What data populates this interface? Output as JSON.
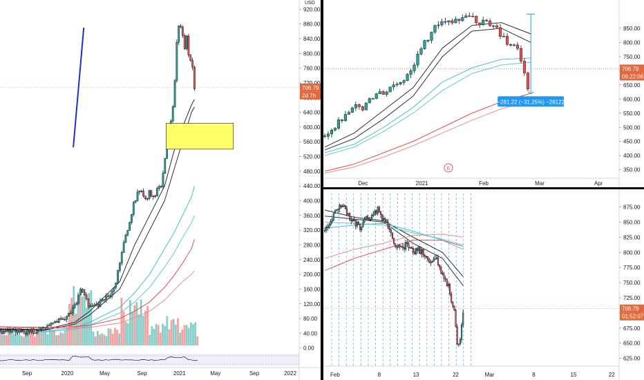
{
  "chart_data": [
    {
      "type": "candlestick",
      "pane": "left-weekly",
      "currency": "USD",
      "price_axis": {
        "ticks": [
          920,
          880,
          840,
          800,
          760,
          720,
          680,
          640,
          600,
          560,
          520,
          480,
          440,
          400,
          360,
          320,
          280,
          240,
          200,
          160,
          120,
          80,
          40,
          0
        ],
        "tick_labels": [
          "920.00",
          "880.00",
          "840.00",
          "800.00",
          "760.00",
          "720.00",
          "680.00",
          "640.00",
          "600.00",
          "560.00",
          "520.00",
          "480.00",
          "440.00",
          "400.00",
          "360.00",
          "320.00",
          "280.00",
          "240.00",
          "200.00",
          "160.00",
          "120.00",
          "80.00",
          "40.00",
          "0.00"
        ],
        "range": [
          -8,
          930
        ]
      },
      "time_axis": {
        "labels": [
          "Sep",
          "2020",
          "May",
          "Sep",
          "2021",
          "May",
          "Sep",
          "2022"
        ],
        "positions": [
          0.09,
          0.225,
          0.35,
          0.475,
          0.6,
          0.72,
          0.85,
          0.97
        ]
      },
      "last_price": "706.79",
      "last_price_countdown": "2d 7h",
      "close_path": [
        [
          0.0,
          44
        ],
        [
          0.03,
          48
        ],
        [
          0.06,
          46
        ],
        [
          0.09,
          44
        ],
        [
          0.12,
          48
        ],
        [
          0.15,
          58
        ],
        [
          0.18,
          64
        ],
        [
          0.21,
          80
        ],
        [
          0.24,
          100
        ],
        [
          0.255,
          125
        ],
        [
          0.27,
          160
        ],
        [
          0.285,
          135
        ],
        [
          0.3,
          110
        ],
        [
          0.32,
          115
        ],
        [
          0.34,
          125
        ],
        [
          0.36,
          140
        ],
        [
          0.38,
          155
        ],
        [
          0.39,
          190
        ],
        [
          0.4,
          230
        ],
        [
          0.41,
          280
        ],
        [
          0.42,
          300
        ],
        [
          0.43,
          320
        ],
        [
          0.44,
          370
        ],
        [
          0.45,
          400
        ],
        [
          0.46,
          420
        ],
        [
          0.47,
          430
        ],
        [
          0.48,
          410
        ],
        [
          0.49,
          395
        ],
        [
          0.5,
          430
        ],
        [
          0.51,
          410
        ],
        [
          0.52,
          420
        ],
        [
          0.53,
          445
        ],
        [
          0.54,
          440
        ],
        [
          0.55,
          510
        ],
        [
          0.56,
          580
        ],
        [
          0.57,
          610
        ],
        [
          0.58,
          660
        ],
        [
          0.585,
          730
        ],
        [
          0.59,
          820
        ],
        [
          0.595,
          860
        ],
        [
          0.6,
          880
        ],
        [
          0.61,
          850
        ],
        [
          0.615,
          800
        ],
        [
          0.62,
          830
        ],
        [
          0.625,
          860
        ],
        [
          0.63,
          800
        ],
        [
          0.64,
          780
        ],
        [
          0.645,
          760
        ],
        [
          0.65,
          710
        ]
      ],
      "moving_averages": [
        {
          "color": "#131722",
          "points": [
            [
              0.0,
              52
            ],
            [
              0.15,
              50
            ],
            [
              0.25,
              70
            ],
            [
              0.3,
              100
            ],
            [
              0.4,
              180
            ],
            [
              0.45,
              280
            ],
            [
              0.5,
              360
            ],
            [
              0.55,
              440
            ],
            [
              0.58,
              530
            ],
            [
              0.61,
              600
            ],
            [
              0.64,
              660
            ],
            [
              0.65,
              675
            ]
          ]
        },
        {
          "color": "#131722",
          "points": [
            [
              0.0,
              50
            ],
            [
              0.15,
              48
            ],
            [
              0.25,
              65
            ],
            [
              0.3,
              90
            ],
            [
              0.4,
              160
            ],
            [
              0.45,
              240
            ],
            [
              0.5,
              320
            ],
            [
              0.55,
              400
            ],
            [
              0.58,
              480
            ],
            [
              0.61,
              560
            ],
            [
              0.64,
              640
            ],
            [
              0.65,
              655
            ]
          ]
        },
        {
          "color": "#38b6d1",
          "points": [
            [
              0.0,
              48
            ],
            [
              0.15,
              45
            ],
            [
              0.25,
              55
            ],
            [
              0.3,
              70
            ],
            [
              0.4,
              110
            ],
            [
              0.45,
              150
            ],
            [
              0.5,
              200
            ],
            [
              0.55,
              270
            ],
            [
              0.58,
              310
            ],
            [
              0.61,
              360
            ],
            [
              0.64,
              410
            ],
            [
              0.65,
              440
            ]
          ]
        },
        {
          "color": "#4fc3d8",
          "points": [
            [
              0.0,
              46
            ],
            [
              0.15,
              44
            ],
            [
              0.25,
              50
            ],
            [
              0.3,
              62
            ],
            [
              0.4,
              95
            ],
            [
              0.45,
              125
            ],
            [
              0.5,
              165
            ],
            [
              0.55,
              220
            ],
            [
              0.58,
              255
            ],
            [
              0.61,
              300
            ],
            [
              0.64,
              340
            ],
            [
              0.65,
              360
            ]
          ]
        },
        {
          "color": "#e53935",
          "points": [
            [
              0.0,
              58
            ],
            [
              0.15,
              56
            ],
            [
              0.25,
              58
            ],
            [
              0.3,
              62
            ],
            [
              0.4,
              80
            ],
            [
              0.45,
              100
            ],
            [
              0.5,
              125
            ],
            [
              0.55,
              165
            ],
            [
              0.58,
              195
            ],
            [
              0.61,
              230
            ],
            [
              0.64,
              270
            ],
            [
              0.65,
              295
            ]
          ]
        },
        {
          "color": "#ef7f7f",
          "points": [
            [
              0.0,
              56
            ],
            [
              0.15,
              54
            ],
            [
              0.25,
              54
            ],
            [
              0.3,
              56
            ],
            [
              0.4,
              68
            ],
            [
              0.45,
              82
            ],
            [
              0.5,
              100
            ],
            [
              0.55,
              130
            ],
            [
              0.58,
              155
            ],
            [
              0.61,
              180
            ],
            [
              0.64,
              200
            ],
            [
              0.65,
              210
            ]
          ]
        }
      ],
      "zone_box": {
        "x_start": 0.555,
        "x_end": 0.78,
        "price_high": 610,
        "price_low": 540,
        "color": "#ffff66"
      },
      "trend_line": {
        "points": [
          [
            0.245,
            545
          ],
          [
            0.28,
            870
          ]
        ],
        "color": "#1f2bd1"
      }
    },
    {
      "type": "candlestick",
      "pane": "top-right-daily",
      "price_axis": {
        "ticks": [
          850,
          800,
          750,
          700,
          650,
          600,
          550,
          500,
          450,
          400,
          350
        ],
        "tick_labels": [
          "850.00",
          "800.00",
          "750.00",
          "700.00",
          "650.00",
          "600.00",
          "550.00",
          "500.00",
          "450.00",
          "400.00",
          "350.00"
        ],
        "range": [
          320,
          940
        ]
      },
      "time_axis": {
        "labels": [
          "Dec",
          "2021",
          "Feb",
          "Mar",
          "Apr"
        ],
        "positions": [
          0.13,
          0.33,
          0.54,
          0.73,
          0.93
        ]
      },
      "last_price": "706.79",
      "last_price_countdown": "06:22:06",
      "close_path": [
        [
          0.0,
          470
        ],
        [
          0.02,
          490
        ],
        [
          0.04,
          510
        ],
        [
          0.06,
          530
        ],
        [
          0.08,
          560
        ],
        [
          0.1,
          575
        ],
        [
          0.12,
          560
        ],
        [
          0.14,
          585
        ],
        [
          0.16,
          600
        ],
        [
          0.18,
          620
        ],
        [
          0.2,
          610
        ],
        [
          0.22,
          640
        ],
        [
          0.24,
          660
        ],
        [
          0.26,
          650
        ],
        [
          0.28,
          690
        ],
        [
          0.3,
          720
        ],
        [
          0.32,
          760
        ],
        [
          0.34,
          800
        ],
        [
          0.36,
          830
        ],
        [
          0.38,
          860
        ],
        [
          0.4,
          880
        ],
        [
          0.42,
          870
        ],
        [
          0.44,
          885
        ],
        [
          0.46,
          870
        ],
        [
          0.48,
          890
        ],
        [
          0.5,
          900
        ],
        [
          0.52,
          870
        ],
        [
          0.54,
          880
        ],
        [
          0.56,
          850
        ],
        [
          0.58,
          860
        ],
        [
          0.6,
          820
        ],
        [
          0.62,
          800
        ],
        [
          0.64,
          790
        ],
        [
          0.66,
          760
        ],
        [
          0.68,
          690
        ],
        [
          0.69,
          640
        ]
      ],
      "moving_averages": [
        {
          "color": "#131722",
          "points": [
            [
              0.0,
              430
            ],
            [
              0.1,
              480
            ],
            [
              0.2,
              560
            ],
            [
              0.3,
              640
            ],
            [
              0.4,
              780
            ],
            [
              0.5,
              860
            ],
            [
              0.6,
              870
            ],
            [
              0.7,
              830
            ]
          ]
        },
        {
          "color": "#131722",
          "points": [
            [
              0.0,
              420
            ],
            [
              0.1,
              460
            ],
            [
              0.2,
              530
            ],
            [
              0.3,
              610
            ],
            [
              0.4,
              750
            ],
            [
              0.5,
              840
            ],
            [
              0.6,
              850
            ],
            [
              0.7,
              800
            ]
          ]
        },
        {
          "color": "#38b6d1",
          "points": [
            [
              0.0,
              410
            ],
            [
              0.1,
              440
            ],
            [
              0.2,
              500
            ],
            [
              0.3,
              570
            ],
            [
              0.4,
              660
            ],
            [
              0.5,
              710
            ],
            [
              0.6,
              740
            ],
            [
              0.7,
              745
            ]
          ]
        },
        {
          "color": "#4fc3d8",
          "points": [
            [
              0.0,
              400
            ],
            [
              0.1,
              430
            ],
            [
              0.2,
              485
            ],
            [
              0.3,
              550
            ],
            [
              0.4,
              630
            ],
            [
              0.5,
              690
            ],
            [
              0.6,
              720
            ],
            [
              0.7,
              730
            ]
          ]
        },
        {
          "color": "#e53935",
          "points": [
            [
              0.0,
              345
            ],
            [
              0.1,
              370
            ],
            [
              0.2,
              410
            ],
            [
              0.3,
              450
            ],
            [
              0.4,
              500
            ],
            [
              0.5,
              550
            ],
            [
              0.6,
              590
            ],
            [
              0.7,
              620
            ]
          ]
        },
        {
          "color": "#ef7f7f",
          "points": [
            [
              0.0,
              338
            ],
            [
              0.1,
              360
            ],
            [
              0.2,
              395
            ],
            [
              0.3,
              435
            ],
            [
              0.4,
              480
            ],
            [
              0.5,
              525
            ],
            [
              0.6,
              565
            ],
            [
              0.7,
              595
            ]
          ]
        }
      ],
      "measure_label": "−281.22 (−31.25%) −28122",
      "earnings_marker": "E"
    },
    {
      "type": "candlestick",
      "pane": "bottom-right-intraday",
      "price_axis": {
        "ticks": [
          875,
          850,
          825,
          800,
          775,
          750,
          725,
          700,
          675,
          650,
          625
        ],
        "tick_labels": [
          "875.00",
          "850.00",
          "825.00",
          "800.00",
          "775.00",
          "750.00",
          "725.00",
          "700.00",
          "675.00",
          "650.00",
          "625.00"
        ],
        "range": [
          612,
          895
        ]
      },
      "time_axis": {
        "labels": [
          "Feb",
          "8",
          "13",
          "22",
          "Mar",
          "8",
          "15",
          "22"
        ],
        "positions": [
          0.035,
          0.185,
          0.31,
          0.445,
          0.56,
          0.71,
          0.845,
          0.975
        ]
      },
      "last_price": "706.79",
      "last_price_countdown": "01:52:07"
    }
  ]
}
